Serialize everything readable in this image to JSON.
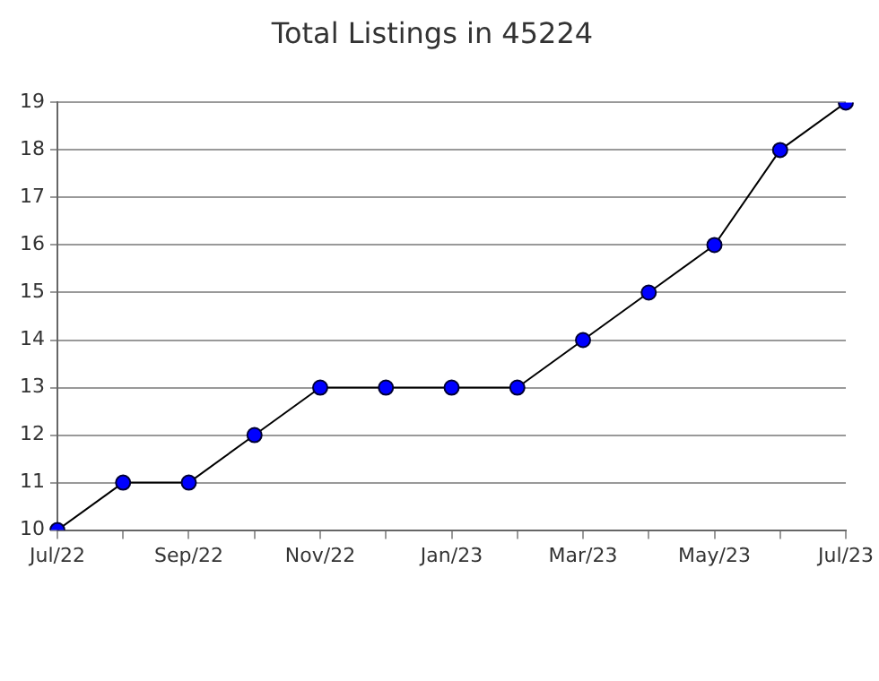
{
  "chart_data": {
    "type": "line",
    "title": "Total Listings in 45224",
    "categories": [
      "Jul/22",
      null,
      "Sep/22",
      null,
      "Nov/22",
      null,
      "Jan/23",
      null,
      "Mar/23",
      null,
      "May/23",
      null,
      "Jul/23"
    ],
    "series": [
      {
        "color": "#0000ff",
        "values": [
          10,
          11,
          11,
          12,
          13,
          13,
          13,
          13,
          14,
          15,
          16,
          18,
          19
        ]
      }
    ],
    "ylim": [
      10,
      19
    ],
    "yticks": [
      10,
      11,
      12,
      13,
      14,
      15,
      16,
      17,
      18,
      19
    ],
    "grid": "y",
    "marker": "circle",
    "line_style": "solid",
    "legend": false
  }
}
